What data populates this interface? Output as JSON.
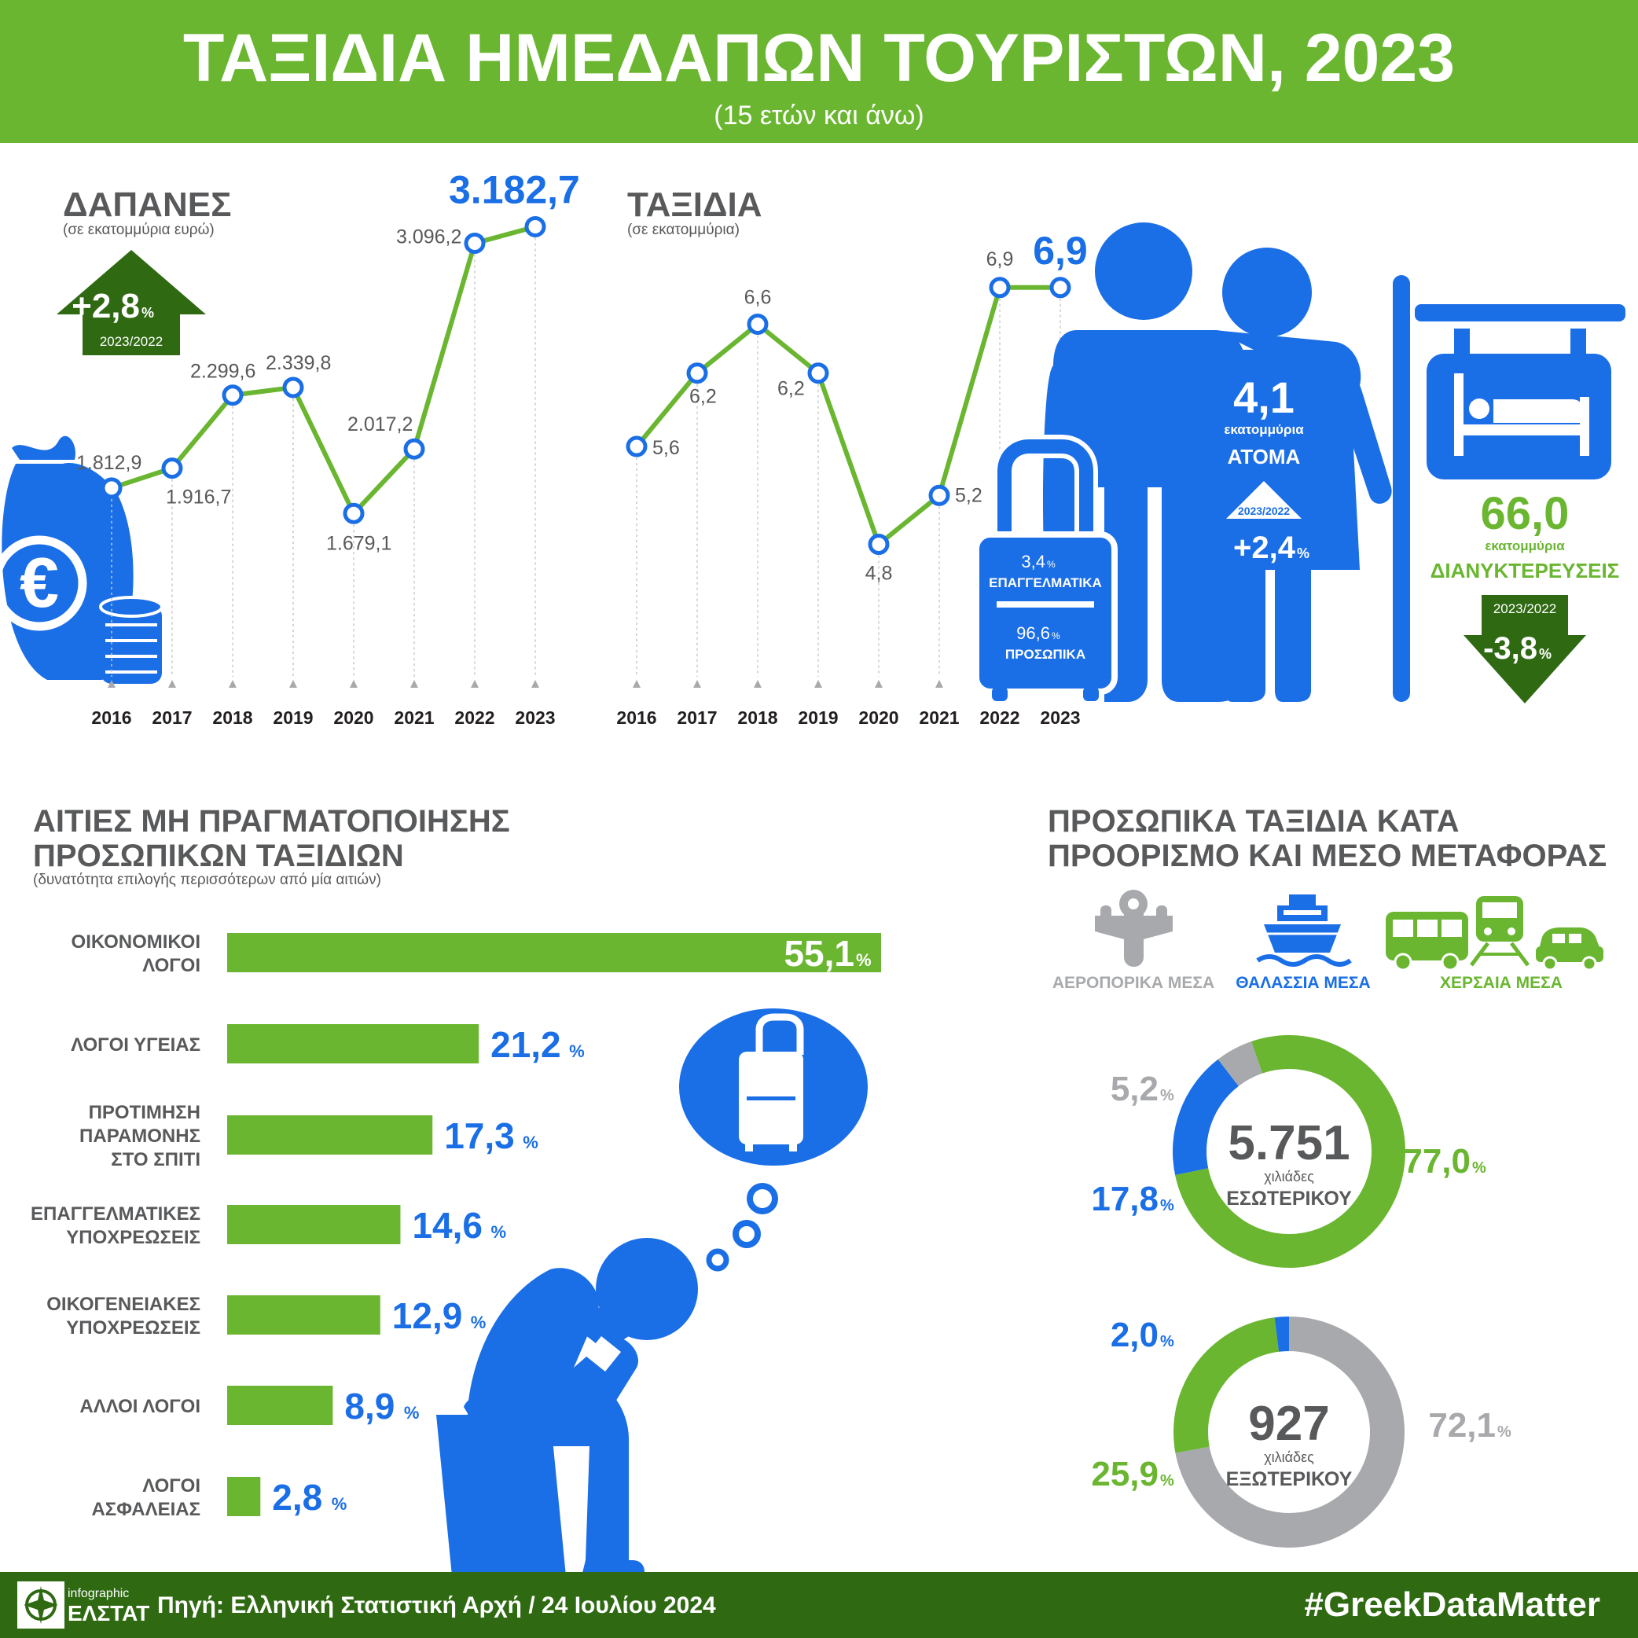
{
  "header": {
    "title": "ΤΑΞΙΔΙΑ ΗΜΕΔΑΠΩΝ ΤΟΥΡΙΣΤΩΝ, 2023",
    "subtitle": "(15 ετών και άνω)"
  },
  "colors": {
    "green": "#6ab630",
    "dark_green": "#2f6a13",
    "blue": "#1a6ee6",
    "grey": "#a7a9ac",
    "text_grey": "#58595b",
    "footer_green": "#2f6a13"
  },
  "chart_data": [
    {
      "type": "line",
      "title": "ΔΑΠΑΝΕΣ",
      "subtitle": "(σε εκατομμύρια ευρώ)",
      "x": [
        "2016",
        "2017",
        "2018",
        "2019",
        "2020",
        "2021",
        "2022",
        "2023"
      ],
      "values": [
        1812.9,
        1916.7,
        2299.6,
        2339.8,
        1679.1,
        2017.2,
        3096.2,
        3182.7
      ],
      "value_labels": [
        "1.812,9",
        "1.916,7",
        "2.299,6",
        "2.339,8",
        "1.679,1",
        "2.017,2",
        "3.096,2",
        "3.182,7"
      ],
      "ylim": [
        1400,
        3300
      ],
      "grid": false
    },
    {
      "type": "line",
      "title": "ΤΑΞΙΔΙΑ",
      "subtitle": "(σε εκατομμύρια)",
      "x": [
        "2016",
        "2017",
        "2018",
        "2019",
        "2020",
        "2021",
        "2022",
        "2023"
      ],
      "values": [
        5.6,
        6.2,
        6.6,
        6.2,
        4.8,
        5.2,
        6.9,
        6.9
      ],
      "value_labels": [
        "5,6",
        "6,2",
        "6,6",
        "6,2",
        "4,8",
        "5,2",
        "6,9",
        "6,9"
      ],
      "ylim": [
        4.0,
        7.4
      ],
      "grid": false
    },
    {
      "type": "bar",
      "title": "ΑΙΤΙΕΣ ΜΗ ΠΡΑΓΜΑΤΟΠΟΙΗΣΗΣ ΠΡΟΣΩΠΙΚΩΝ ΤΑΞΙΔΙΩΝ",
      "subtitle": "(δυνατότητα επιλογής περισσότερων από μία αιτιών)",
      "categories": [
        "ΟΙΚΟΝΟΜΙΚΟΙ ΛΟΓΟΙ",
        "ΛΟΓΟΙ ΥΓΕΙΑΣ",
        "ΠΡΟΤΙΜΗΣΗ ΠΑΡΑΜΟΝΗΣ ΣΤΟ ΣΠΙΤΙ",
        "ΕΠΑΓΓΕΛΜΑΤΙΚΕΣ ΥΠΟΧΡΕΩΣΕΙΣ",
        "ΟΙΚΟΓΕΝΕΙΑΚΕΣ ΥΠΟΧΡΕΩΣΕΙΣ",
        "ΑΛΛΟΙ ΛΟΓΟΙ",
        "ΛΟΓΟΙ ΑΣΦΑΛΕΙΑΣ"
      ],
      "category_lines": [
        [
          "ΟΙΚΟΝΟΜΙΚΟΙ",
          "ΛΟΓΟΙ"
        ],
        [
          "ΛΟΓΟΙ ΥΓΕΙΑΣ"
        ],
        [
          "ΠΡΟΤΙΜΗΣΗ",
          "ΠΑΡΑΜΟΝΗΣ",
          "ΣΤΟ ΣΠΙΤΙ"
        ],
        [
          "ΕΠΑΓΓΕΛΜΑΤΙΚΕΣ",
          "ΥΠΟΧΡΕΩΣΕΙΣ"
        ],
        [
          "ΟΙΚΟΓΕΝΕΙΑΚΕΣ",
          "ΥΠΟΧΡΕΩΣΕΙΣ"
        ],
        [
          "ΑΛΛΟΙ ΛΟΓΟΙ"
        ],
        [
          "ΛΟΓΟΙ",
          "ΑΣΦΑΛΕΙΑΣ"
        ]
      ],
      "values": [
        55.1,
        21.2,
        17.3,
        14.6,
        12.9,
        8.9,
        2.8
      ],
      "value_labels": [
        "55,1",
        "21,2",
        "17,3",
        "14,6",
        "12,9",
        "8,9",
        "2,8"
      ],
      "unit": "%"
    },
    {
      "type": "pie",
      "title": "ΠΡΟΣΩΠΙΚΑ ΤΑΞΙΔΙΑ ΚΑΤΑ ΠΡΟΟΡΙΣΜΟ ΚΑΙ ΜΕΣΟ ΜΕΤΑΦΟΡΑΣ",
      "center_value": "5.751",
      "center_unit": "χιλιάδες",
      "center_label": "ΕΣΩΤΕΡΙΚΟΥ",
      "categories": [
        "ΧΕΡΣΑΙΑ ΜΕΣΑ",
        "ΘΑΛΑΣΣΙΑ ΜΕΣΑ",
        "ΑΕΡΟΠΟΡΙΚΑ ΜΕΣΑ"
      ],
      "values": [
        77.0,
        17.8,
        5.2
      ],
      "value_labels": [
        "77,0",
        "17,8",
        "5,2"
      ],
      "unit": "%"
    },
    {
      "type": "pie",
      "center_value": "927",
      "center_unit": "χιλιάδες",
      "center_label": "ΕΞΩΤΕΡΙΚΟΥ",
      "categories": [
        "ΑΕΡΟΠΟΡΙΚΑ ΜΕΣΑ",
        "ΧΕΡΣΑΙΑ ΜΕΣΑ",
        "ΘΑΛΑΣΣΙΑ ΜΕΣΑ"
      ],
      "values": [
        72.1,
        25.9,
        2.0
      ],
      "value_labels": [
        "72,1",
        "25,9",
        "2,0"
      ],
      "unit": "%"
    }
  ],
  "spending_change": {
    "value": "+2,8",
    "unit": "%",
    "period": "2023/2022"
  },
  "people": {
    "value": "4,1",
    "unit_text": "εκατομμύρια",
    "label": "ΑΤΟΜΑ",
    "period": "2023/2022",
    "change": "+2,4",
    "change_unit": "%"
  },
  "suitcase": {
    "business_value": "3,4",
    "business_label": "ΕΠΑΓΓΕΛΜΑΤΙΚΑ",
    "personal_value": "96,6",
    "personal_label": "ΠΡΟΣΩΠΙΚΑ",
    "unit": "%"
  },
  "overnights": {
    "value": "66,0",
    "unit_text": "εκατομμύρια",
    "label": "ΔΙΑΝΥΚΤΕΡΕΥΣΕΙΣ",
    "period": "2023/2022",
    "change": "-3,8",
    "change_unit": "%"
  },
  "transport_legend": {
    "air": "ΑΕΡΟΠΟΡΙΚΑ ΜΕΣΑ",
    "sea": "ΘΑΛΑΣΣΙΑ ΜΕΣΑ",
    "land": "ΧΕΡΣΑΙΑ ΜΕΣΑ"
  },
  "footer": {
    "logo_top": "infographic",
    "logo_bottom": "ΕΛΣΤΑΤ",
    "source": "Πηγή: Ελληνική Στατιστική Αρχή  / 24 Ιουλίου 2024",
    "hashtag": "#GreekDataMatter"
  },
  "icons": [
    "money-bag-icon",
    "coins-icon",
    "couple-icon",
    "suitcase-icon",
    "hotel-sign-icon",
    "bed-icon",
    "airplane-icon",
    "ship-icon",
    "bus-icon",
    "train-icon",
    "car-icon",
    "worried-person-icon",
    "thought-bubble-icon",
    "elstat-logo-icon"
  ]
}
